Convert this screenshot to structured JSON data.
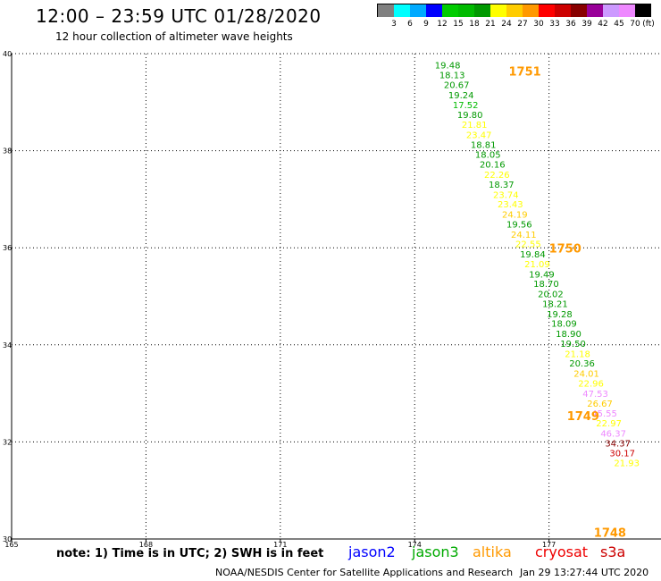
{
  "header": {
    "title": "12:00 – 23:59 UTC 01/28/2020",
    "subtitle": "12 hour collection of altimeter wave heights"
  },
  "footer": {
    "note": "note: 1) Time is in UTC; 2) SWH is in feet",
    "credit": "NOAA/NESDIS Center for Satellite Applications and Research",
    "timestamp": "Jan 29 13:27:44 UTC 2020"
  },
  "satellites": [
    {
      "label": "jason2",
      "color": "#0000ff"
    },
    {
      "label": "jason3",
      "color": "#00aa00"
    },
    {
      "label": "altika",
      "color": "#ff9900"
    },
    {
      "label": "cryosat",
      "color": "#ee0000"
    },
    {
      "label": "s3a",
      "color": "#cc0000"
    }
  ],
  "legend": {
    "unit": "(ft)",
    "colors": [
      "#808080",
      "#00ffff",
      "#00aaff",
      "#0000ff",
      "#00cc00",
      "#00bb00",
      "#009900",
      "#ffff00",
      "#ffcc00",
      "#ff9900",
      "#ff0000",
      "#cc0000",
      "#880000",
      "#990099",
      "#cc99ff",
      "#ee88ff",
      "#000000"
    ],
    "ticks": [
      "3",
      "6",
      "9",
      "12",
      "15",
      "18",
      "21",
      "24",
      "27",
      "30",
      "33",
      "36",
      "39",
      "42",
      "45",
      "70"
    ]
  },
  "chart_data": {
    "type": "scatter",
    "title": "12:00 – 23:59 UTC 01/28/2020",
    "subtitle": "12 hour collection of altimeter wave heights",
    "xlabel": "",
    "ylabel": "",
    "xlim": [
      165,
      179.5
    ],
    "ylim": [
      30,
      40
    ],
    "xticks": [
      "165",
      "168",
      "171",
      "174",
      "177"
    ],
    "yticks": [
      "30",
      "32",
      "34",
      "36",
      "38",
      "40"
    ],
    "grid": true,
    "times": [
      {
        "label": "1751",
        "lon": 176.1,
        "lat": 39.55
      },
      {
        "label": "1750",
        "lon": 177.0,
        "lat": 35.9
      },
      {
        "label": "1749",
        "lon": 177.4,
        "lat": 32.45
      },
      {
        "label": "1748",
        "lon": 178.0,
        "lat": 30.05
      }
    ],
    "points": [
      {
        "lon": 174.45,
        "lat": 39.7,
        "v": "19.48",
        "c": "#009900"
      },
      {
        "lon": 174.55,
        "lat": 39.49,
        "v": "18.13",
        "c": "#009900"
      },
      {
        "lon": 174.65,
        "lat": 39.29,
        "v": "20.67",
        "c": "#009900"
      },
      {
        "lon": 174.75,
        "lat": 39.08,
        "v": "19.24",
        "c": "#009900"
      },
      {
        "lon": 174.85,
        "lat": 38.88,
        "v": "17.52",
        "c": "#00bb00"
      },
      {
        "lon": 174.95,
        "lat": 38.67,
        "v": "19.80",
        "c": "#009900"
      },
      {
        "lon": 175.05,
        "lat": 38.47,
        "v": "21.81",
        "c": "#ffff00"
      },
      {
        "lon": 175.15,
        "lat": 38.26,
        "v": "23.47",
        "c": "#ffff00"
      },
      {
        "lon": 175.25,
        "lat": 38.06,
        "v": "18.81",
        "c": "#009900"
      },
      {
        "lon": 175.35,
        "lat": 37.85,
        "v": "18.05",
        "c": "#009900"
      },
      {
        "lon": 175.45,
        "lat": 37.65,
        "v": "20.16",
        "c": "#009900"
      },
      {
        "lon": 175.55,
        "lat": 37.44,
        "v": "22.26",
        "c": "#ffff00"
      },
      {
        "lon": 175.65,
        "lat": 37.24,
        "v": "18.37",
        "c": "#009900"
      },
      {
        "lon": 175.75,
        "lat": 37.03,
        "v": "23.74",
        "c": "#ffff00"
      },
      {
        "lon": 175.85,
        "lat": 36.83,
        "v": "23.43",
        "c": "#ffff00"
      },
      {
        "lon": 175.95,
        "lat": 36.62,
        "v": "24.19",
        "c": "#ffcc00"
      },
      {
        "lon": 176.05,
        "lat": 36.42,
        "v": "19.56",
        "c": "#009900"
      },
      {
        "lon": 176.15,
        "lat": 36.21,
        "v": "24.11",
        "c": "#ffcc00"
      },
      {
        "lon": 176.25,
        "lat": 36.01,
        "v": "22.55",
        "c": "#ffff00"
      },
      {
        "lon": 176.35,
        "lat": 35.8,
        "v": "19.84",
        "c": "#009900"
      },
      {
        "lon": 176.45,
        "lat": 35.6,
        "v": "21.09",
        "c": "#ffff00"
      },
      {
        "lon": 176.55,
        "lat": 35.39,
        "v": "19.49",
        "c": "#009900"
      },
      {
        "lon": 176.65,
        "lat": 35.19,
        "v": "18.70",
        "c": "#009900"
      },
      {
        "lon": 176.75,
        "lat": 34.98,
        "v": "20.02",
        "c": "#009900"
      },
      {
        "lon": 176.85,
        "lat": 34.78,
        "v": "18.21",
        "c": "#009900"
      },
      {
        "lon": 176.95,
        "lat": 34.57,
        "v": "19.28",
        "c": "#009900"
      },
      {
        "lon": 177.05,
        "lat": 34.37,
        "v": "18.09",
        "c": "#009900"
      },
      {
        "lon": 177.15,
        "lat": 34.16,
        "v": "18.90",
        "c": "#009900"
      },
      {
        "lon": 177.25,
        "lat": 33.96,
        "v": "19.50",
        "c": "#009900"
      },
      {
        "lon": 177.35,
        "lat": 33.75,
        "v": "21.18",
        "c": "#ffff00"
      },
      {
        "lon": 177.45,
        "lat": 33.55,
        "v": "20.36",
        "c": "#009900"
      },
      {
        "lon": 177.55,
        "lat": 33.34,
        "v": "24.01",
        "c": "#ffcc00"
      },
      {
        "lon": 177.65,
        "lat": 33.14,
        "v": "22.96",
        "c": "#ffff00"
      },
      {
        "lon": 177.75,
        "lat": 32.93,
        "v": "47.53",
        "c": "#ee88ff"
      },
      {
        "lon": 177.85,
        "lat": 32.73,
        "v": "26.67",
        "c": "#ffcc00"
      },
      {
        "lon": 177.95,
        "lat": 32.52,
        "v": "45.55",
        "c": "#ee88ff"
      },
      {
        "lon": 178.05,
        "lat": 32.32,
        "v": "22.97",
        "c": "#ffff00"
      },
      {
        "lon": 178.15,
        "lat": 32.11,
        "v": "46.37",
        "c": "#ee88ff"
      },
      {
        "lon": 178.25,
        "lat": 31.91,
        "v": "34.37",
        "c": "#880000"
      },
      {
        "lon": 178.35,
        "lat": 31.7,
        "v": "30.17",
        "c": "#cc0000"
      },
      {
        "lon": 178.45,
        "lat": 31.5,
        "v": "21.93",
        "c": "#ffff00"
      }
    ],
    "note": "Point positions are approximate readings; values as printed"
  }
}
